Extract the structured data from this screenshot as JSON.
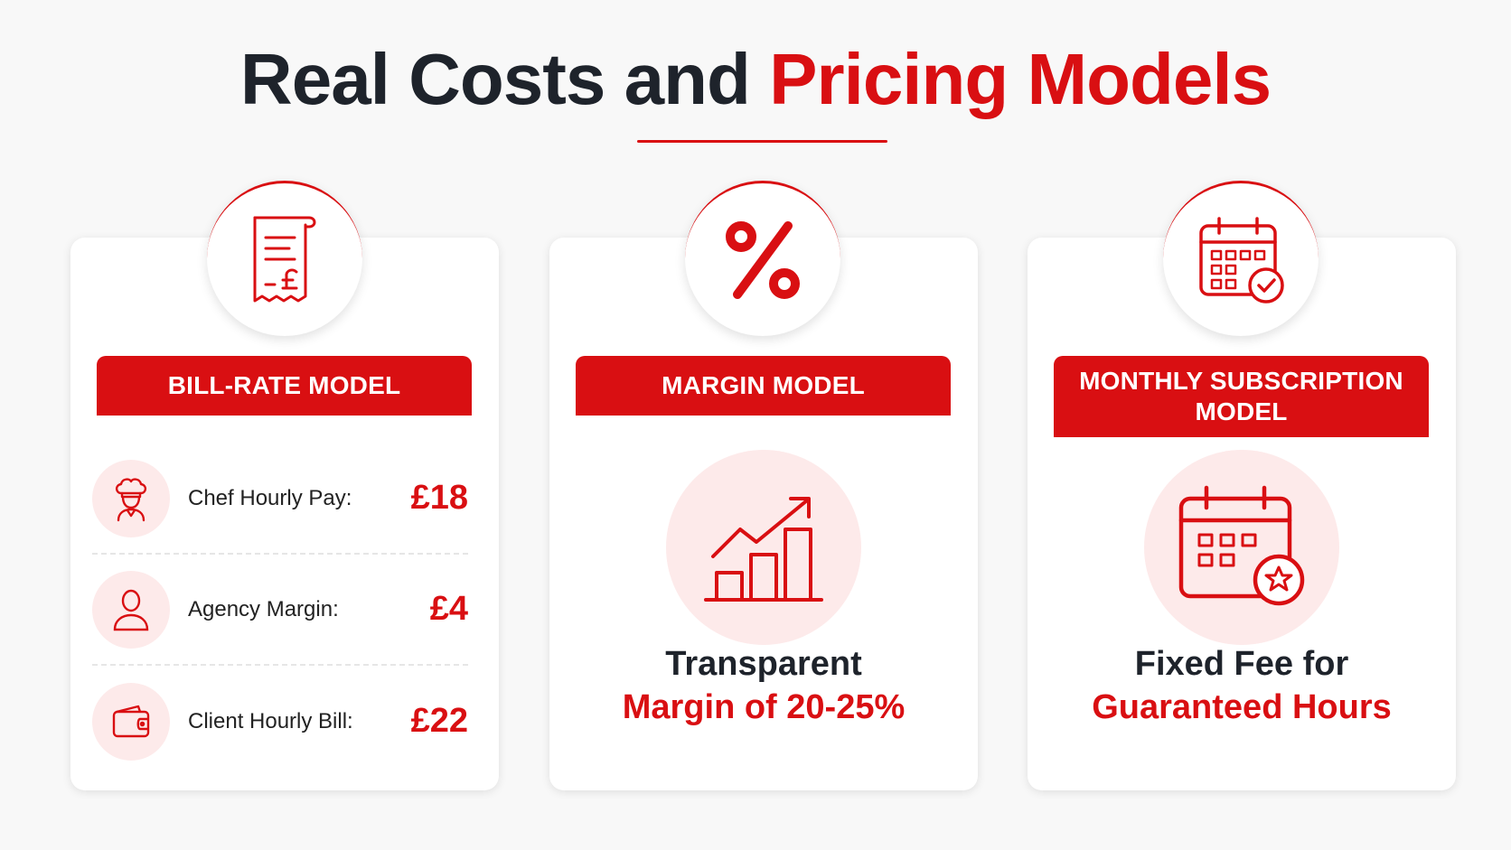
{
  "title": {
    "dark": "Real Costs and",
    "red": "Pricing Models"
  },
  "colors": {
    "accent": "#d90f12",
    "text": "#1e232b",
    "tint": "#fdeaea"
  },
  "cards": [
    {
      "banner": "BILL-RATE MODEL",
      "badge_icon": "receipt-pound-icon",
      "rows": [
        {
          "icon": "chef-icon",
          "label": "Chef Hourly Pay:",
          "value": "£18"
        },
        {
          "icon": "person-icon",
          "label": "Agency Margin:",
          "value": "£4"
        },
        {
          "icon": "wallet-icon",
          "label": "Client Hourly Bill:",
          "value": "£22"
        }
      ]
    },
    {
      "banner": "MARGIN MODEL",
      "badge_icon": "percent-icon",
      "feature_icon": "growth-chart-icon",
      "caption_line1": "Transparent",
      "caption_line2": "Margin of 20-25%"
    },
    {
      "banner": "MONTHLY SUBSCRIPTION MODEL",
      "badge_icon": "calendar-check-icon",
      "feature_icon": "calendar-star-icon",
      "caption_line1": "Fixed Fee for",
      "caption_line2": "Guaranteed Hours"
    }
  ]
}
